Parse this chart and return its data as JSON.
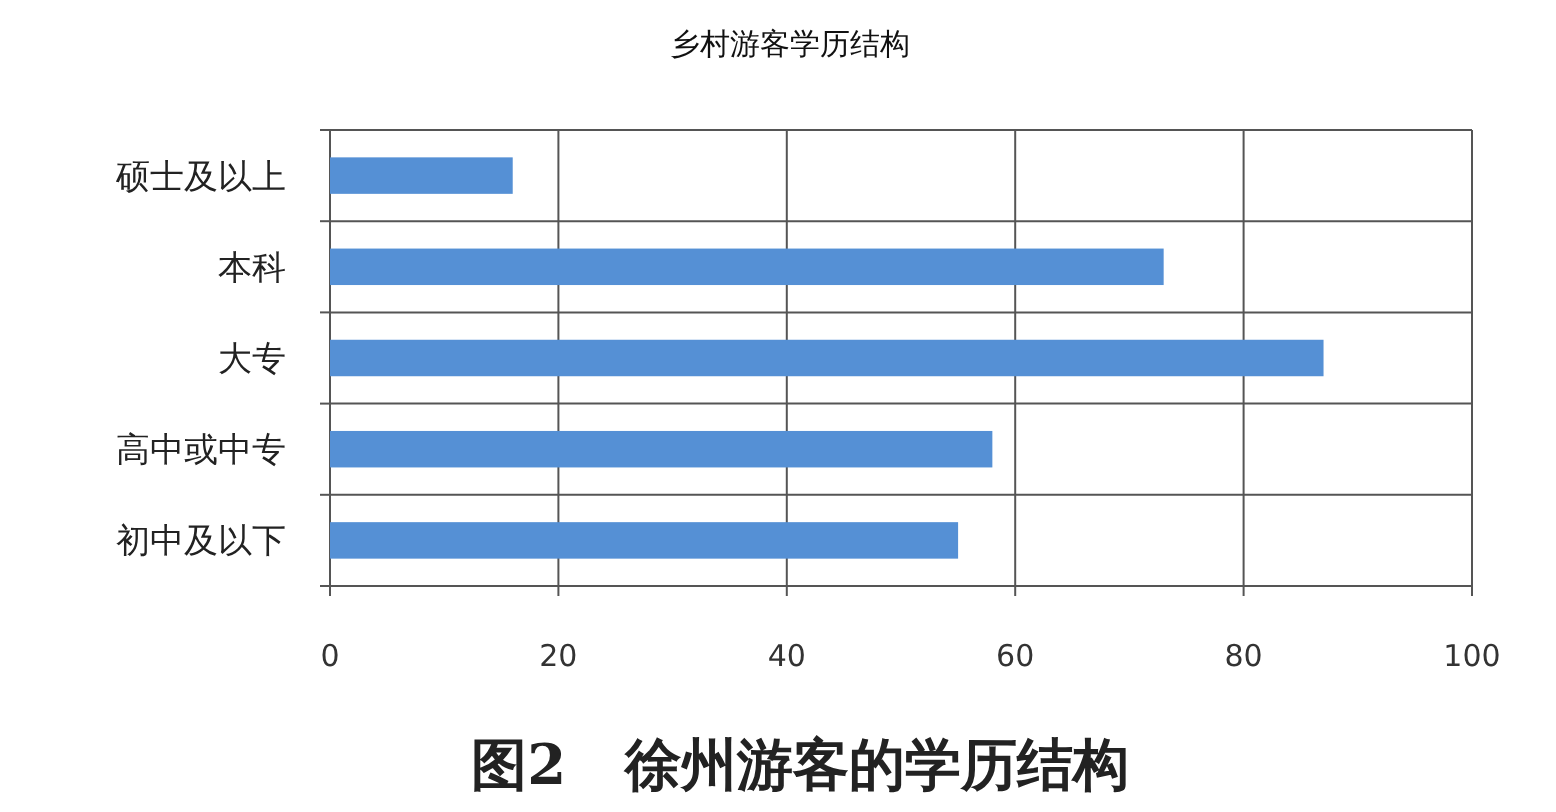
{
  "chart_data": {
    "type": "bar",
    "orientation": "horizontal",
    "title": "乡村游客学历结构",
    "categories": [
      "硕士及以上",
      "本科",
      "大专",
      "高中或中专",
      "初中及以下"
    ],
    "values": [
      16,
      73,
      87,
      58,
      55
    ],
    "color": "#5590d5",
    "xlim": [
      0,
      100
    ],
    "xticks": [
      0,
      20,
      40,
      60,
      80,
      100
    ],
    "grid": true,
    "annotations": [
      "图2   徐州游客的学历结构"
    ]
  }
}
